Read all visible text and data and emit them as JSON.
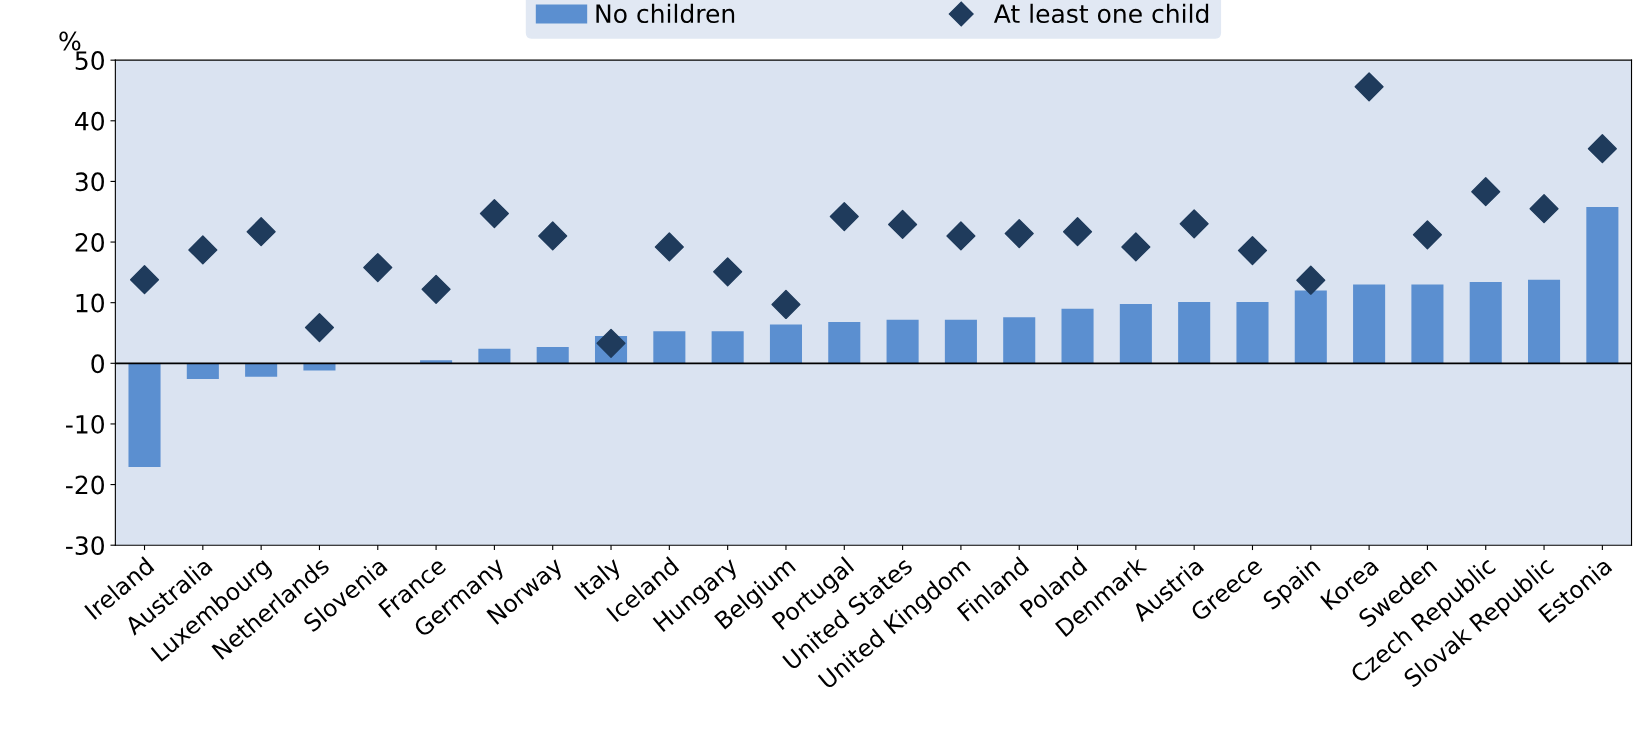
{
  "chart_data": {
    "type": "bar",
    "ylabel": "%",
    "categories": [
      "Ireland",
      "Australia",
      "Luxembourg",
      "Netherlands",
      "Slovenia",
      "France",
      "Germany",
      "Norway",
      "Italy",
      "Iceland",
      "Hungary",
      "Belgium",
      "Portugal",
      "United States",
      "United Kingdom",
      "Finland",
      "Poland",
      "Denmark",
      "Austria",
      "Greece",
      "Spain",
      "Korea",
      "Sweden",
      "Czech Republic",
      "Slovak Republic",
      "Estonia"
    ],
    "series": [
      {
        "name": "No children",
        "color": "#5b8fd0",
        "values": [
          -17.1,
          -2.6,
          -2.2,
          -1.2,
          0,
          0.5,
          2.4,
          2.7,
          4.5,
          5.3,
          5.3,
          6.4,
          6.8,
          7.2,
          7.2,
          7.6,
          9.0,
          9.8,
          10.1,
          10.1,
          12.0,
          13.0,
          13.0,
          13.4,
          13.8,
          25.8
        ]
      },
      {
        "name": "At least one child",
        "type": "scatter",
        "marker": "diamond",
        "color": "#1f3b5c",
        "values": [
          13.8,
          18.7,
          21.7,
          5.9,
          15.8,
          12.2,
          24.7,
          21.0,
          3.3,
          19.2,
          15.1,
          9.7,
          24.2,
          22.9,
          21.0,
          21.4,
          21.7,
          19.2,
          23.0,
          18.6,
          13.7,
          45.6,
          21.2,
          28.3,
          25.5,
          35.4
        ]
      }
    ],
    "ylim": [
      -30,
      50
    ],
    "yticks": [
      -30,
      -20,
      -10,
      0,
      10,
      20,
      30,
      40,
      50
    ],
    "legend": "top"
  }
}
